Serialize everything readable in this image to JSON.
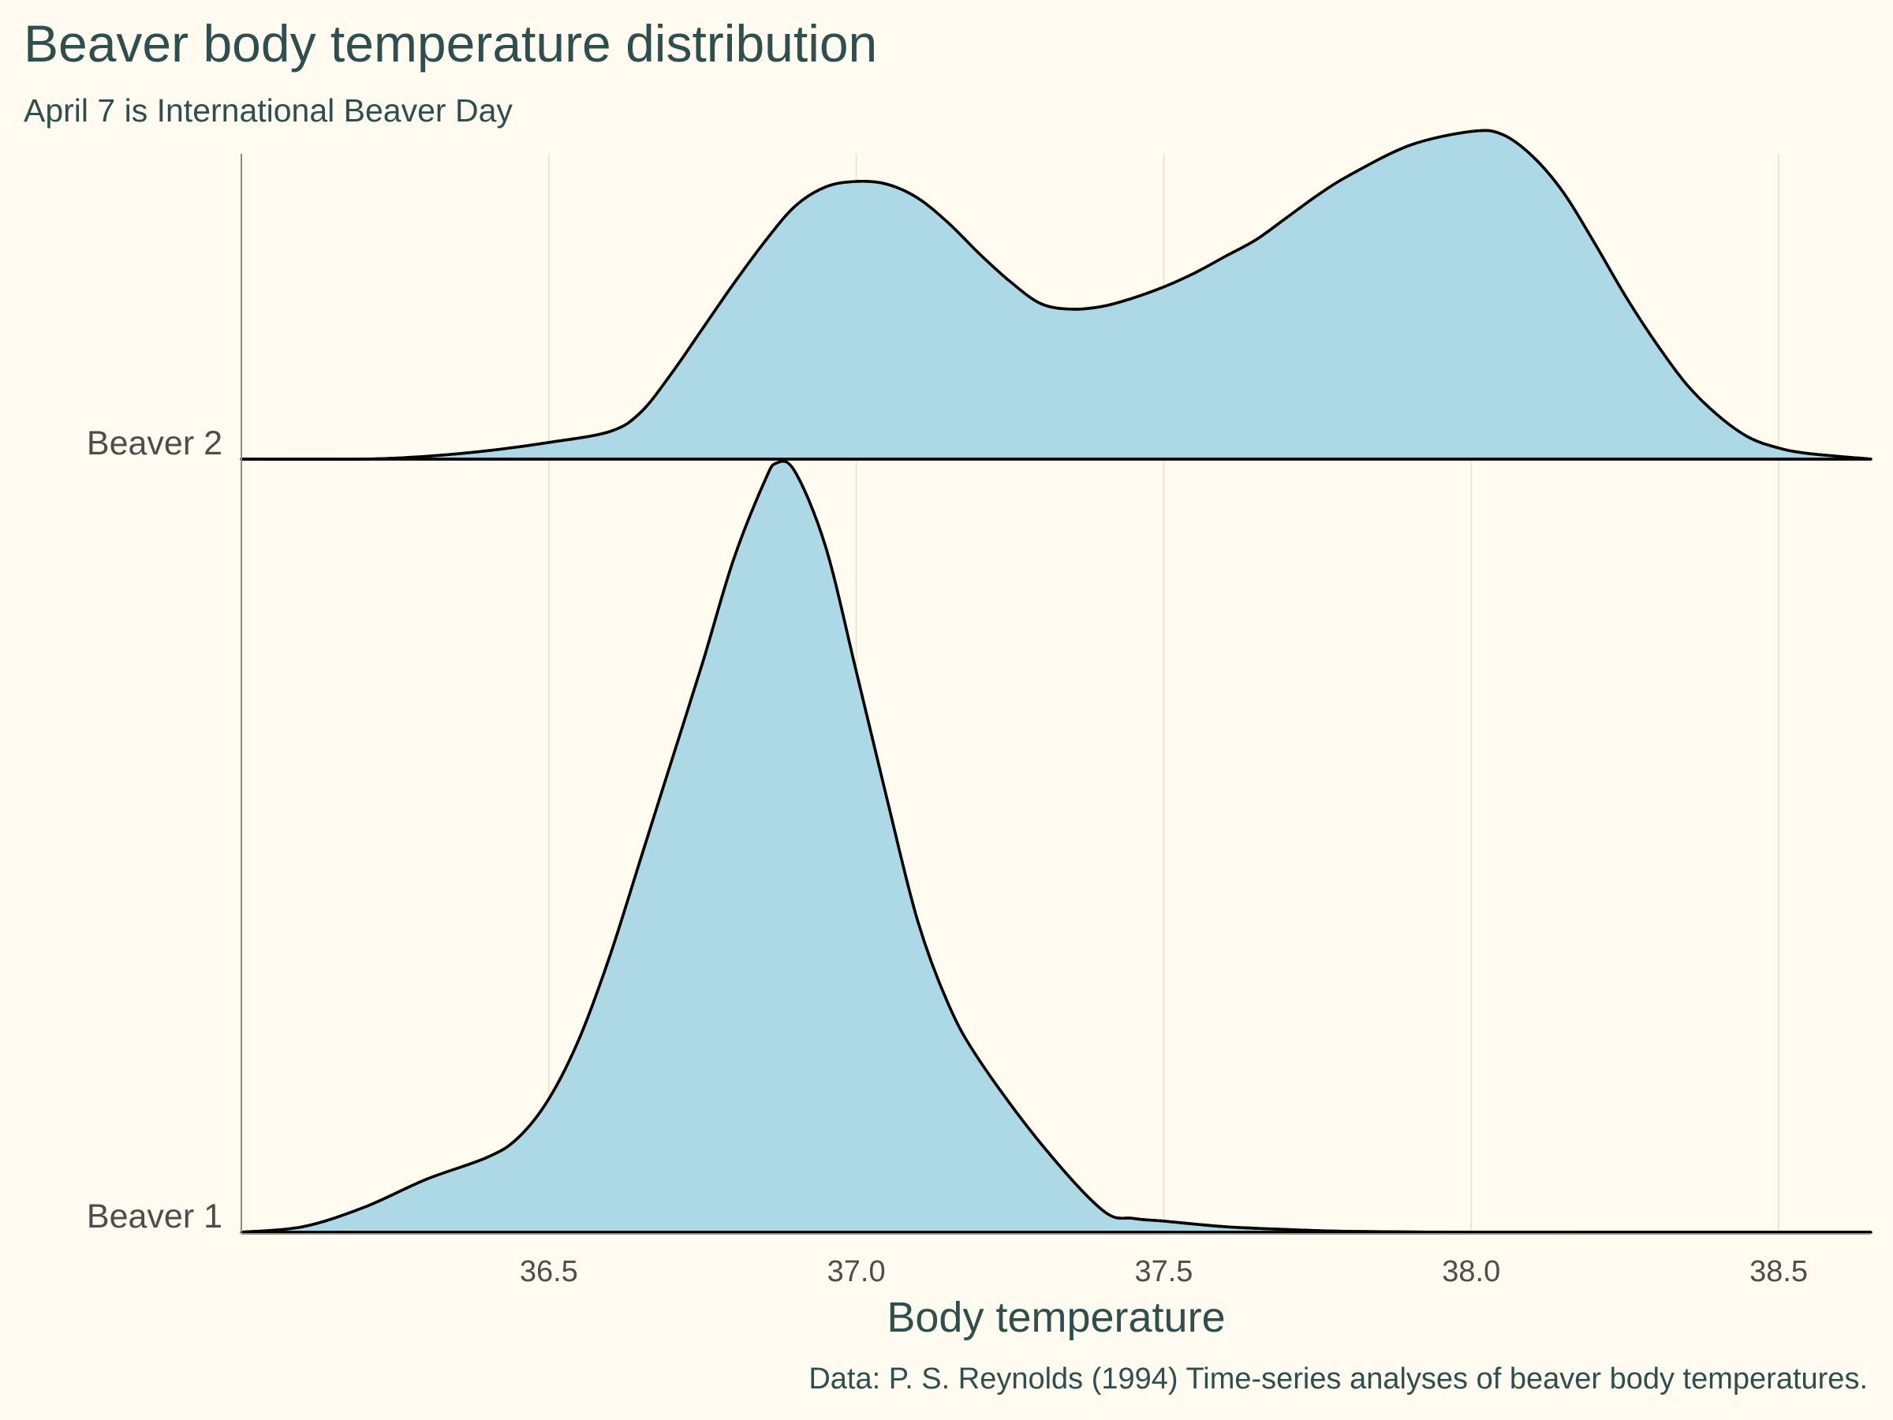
{
  "chart": {
    "title": "Beaver body temperature distribution",
    "subtitle": "April 7 is International Beaver Day",
    "caption": "Data: P. S. Reynolds (1994) Time-series analyses of beaver body temperatures."
  },
  "chart_data": {
    "type": "ridgeline",
    "title": "Beaver body temperature distribution",
    "subtitle": "April 7 is International Beaver Day",
    "xlabel": "Body temperature",
    "ylabel": "",
    "xlim": [
      36.0,
      38.65
    ],
    "x_ticks": [
      "36.5",
      "37.0",
      "37.5",
      "38.0",
      "38.5"
    ],
    "x_tick_values": [
      36.5,
      37.0,
      37.5,
      38.0,
      38.5
    ],
    "categories": [
      "Beaver 1",
      "Beaver 2"
    ],
    "fill_color": "#add8e6",
    "line_color": "#000000",
    "grid": "vertical",
    "legend": "none",
    "series": [
      {
        "name": "Beaver 1",
        "x": [
          36.0,
          36.1,
          36.2,
          36.3,
          36.4,
          36.45,
          36.5,
          36.55,
          36.6,
          36.65,
          36.7,
          36.75,
          36.8,
          36.85,
          36.87,
          36.9,
          36.95,
          37.0,
          37.05,
          37.1,
          37.15,
          37.2,
          37.3,
          37.4,
          37.45,
          37.5,
          37.6,
          37.7,
          37.8,
          38.0,
          38.2,
          38.65
        ],
        "y": [
          0.0,
          0.02,
          0.09,
          0.19,
          0.27,
          0.34,
          0.48,
          0.7,
          1.0,
          1.35,
          1.7,
          2.05,
          2.42,
          2.7,
          2.77,
          2.74,
          2.47,
          2.02,
          1.56,
          1.12,
          0.82,
          0.62,
          0.32,
          0.08,
          0.05,
          0.04,
          0.02,
          0.01,
          0.003,
          0.0,
          0.0,
          0.0
        ]
      },
      {
        "name": "Beaver 2",
        "x": [
          36.0,
          36.2,
          36.3,
          36.4,
          36.5,
          36.6,
          36.65,
          36.7,
          36.75,
          36.8,
          36.85,
          36.9,
          36.95,
          37.0,
          37.05,
          37.1,
          37.15,
          37.2,
          37.25,
          37.3,
          37.35,
          37.4,
          37.45,
          37.5,
          37.55,
          37.6,
          37.65,
          37.7,
          37.75,
          37.8,
          37.9,
          38.0,
          38.05,
          38.1,
          38.15,
          38.2,
          38.25,
          38.3,
          38.35,
          38.4,
          38.45,
          38.5,
          38.55,
          38.65
        ],
        "y": [
          0.0,
          0.0,
          0.01,
          0.03,
          0.06,
          0.1,
          0.17,
          0.31,
          0.47,
          0.63,
          0.78,
          0.91,
          0.98,
          1.0,
          0.99,
          0.94,
          0.85,
          0.74,
          0.64,
          0.56,
          0.54,
          0.55,
          0.58,
          0.62,
          0.67,
          0.73,
          0.79,
          0.87,
          0.95,
          1.02,
          1.13,
          1.18,
          1.17,
          1.09,
          0.96,
          0.78,
          0.59,
          0.42,
          0.27,
          0.16,
          0.08,
          0.04,
          0.02,
          0.0
        ]
      }
    ]
  }
}
